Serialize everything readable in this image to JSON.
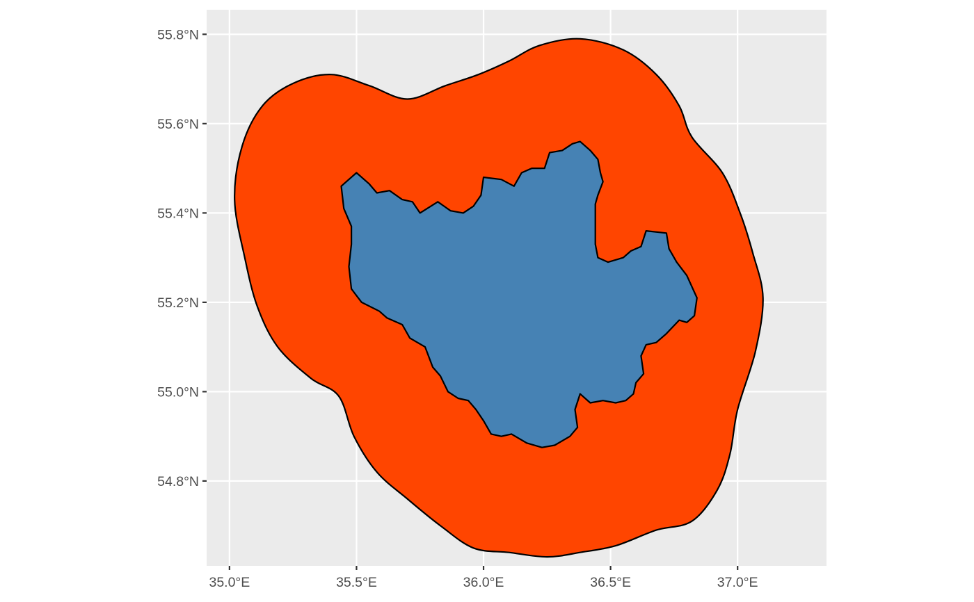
{
  "chart_data": {
    "type": "map",
    "title": "",
    "xlabel": "",
    "ylabel": "",
    "panel_background": "#ebebeb",
    "grid": true,
    "legend": "none",
    "x_axis": {
      "range_deg": [
        34.91,
        37.35
      ],
      "breaks": [
        35.0,
        35.5,
        36.0,
        36.5,
        37.0
      ],
      "tick_labels": [
        "35.0°E",
        "35.5°E",
        "36.0°E",
        "36.5°E",
        "37.0°E"
      ]
    },
    "y_axis": {
      "range_deg": [
        54.61,
        55.855
      ],
      "breaks": [
        54.8,
        55.0,
        55.2,
        55.4,
        55.6,
        55.8
      ],
      "tick_labels": [
        "54.8°N",
        "55.0°N",
        "55.2°N",
        "55.4°N",
        "55.6°N",
        "55.8°N"
      ]
    },
    "layers": [
      {
        "name": "",
        "fill": "#ff4500",
        "outline": "#000000",
        "coordinates": [
          [
            36.38,
            55.79
          ],
          [
            36.55,
            55.765
          ],
          [
            36.68,
            55.71
          ],
          [
            36.77,
            55.64
          ],
          [
            36.82,
            55.57
          ],
          [
            36.94,
            55.49
          ],
          [
            37.01,
            55.4
          ],
          [
            37.06,
            55.31
          ],
          [
            37.1,
            55.21
          ],
          [
            37.07,
            55.09
          ],
          [
            37.0,
            54.96
          ],
          [
            36.97,
            54.86
          ],
          [
            36.92,
            54.78
          ],
          [
            36.82,
            54.71
          ],
          [
            36.68,
            54.69
          ],
          [
            36.52,
            54.655
          ],
          [
            36.38,
            54.64
          ],
          [
            36.25,
            54.63
          ],
          [
            36.1,
            54.64
          ],
          [
            35.96,
            54.65
          ],
          [
            35.83,
            54.7
          ],
          [
            35.7,
            54.76
          ],
          [
            35.58,
            54.82
          ],
          [
            35.49,
            54.9
          ],
          [
            35.43,
            54.99
          ],
          [
            35.32,
            55.03
          ],
          [
            35.19,
            55.1
          ],
          [
            35.11,
            55.19
          ],
          [
            35.06,
            55.3
          ],
          [
            35.02,
            55.43
          ],
          [
            35.05,
            55.55
          ],
          [
            35.13,
            55.64
          ],
          [
            35.25,
            55.69
          ],
          [
            35.4,
            55.71
          ],
          [
            35.55,
            55.685
          ],
          [
            35.7,
            55.655
          ],
          [
            35.85,
            55.685
          ],
          [
            35.98,
            55.71
          ],
          [
            36.1,
            55.74
          ],
          [
            36.22,
            55.775
          ]
        ]
      },
      {
        "name": "",
        "fill": "#4682b4",
        "outline": "#000000",
        "coordinates": [
          [
            35.5,
            55.49
          ],
          [
            35.55,
            55.465
          ],
          [
            35.58,
            55.445
          ],
          [
            35.63,
            55.45
          ],
          [
            35.68,
            55.43
          ],
          [
            35.72,
            55.425
          ],
          [
            35.75,
            55.4
          ],
          [
            35.82,
            55.425
          ],
          [
            35.87,
            55.405
          ],
          [
            35.92,
            55.4
          ],
          [
            35.96,
            55.415
          ],
          [
            35.99,
            55.44
          ],
          [
            36.0,
            55.48
          ],
          [
            36.07,
            55.475
          ],
          [
            36.12,
            55.46
          ],
          [
            36.15,
            55.49
          ],
          [
            36.19,
            55.5
          ],
          [
            36.24,
            55.5
          ],
          [
            36.26,
            55.535
          ],
          [
            36.31,
            55.54
          ],
          [
            36.35,
            55.555
          ],
          [
            36.38,
            55.56
          ],
          [
            36.42,
            55.54
          ],
          [
            36.45,
            55.52
          ],
          [
            36.46,
            55.49
          ],
          [
            36.47,
            55.47
          ],
          [
            36.45,
            55.44
          ],
          [
            36.44,
            55.42
          ],
          [
            36.44,
            55.37
          ],
          [
            36.44,
            55.33
          ],
          [
            36.45,
            55.3
          ],
          [
            36.49,
            55.29
          ],
          [
            36.55,
            55.3
          ],
          [
            36.58,
            55.315
          ],
          [
            36.62,
            55.325
          ],
          [
            36.64,
            55.36
          ],
          [
            36.72,
            55.355
          ],
          [
            36.73,
            55.32
          ],
          [
            36.76,
            55.29
          ],
          [
            36.8,
            55.26
          ],
          [
            36.84,
            55.21
          ],
          [
            36.83,
            55.17
          ],
          [
            36.8,
            55.155
          ],
          [
            36.77,
            55.16
          ],
          [
            36.72,
            55.13
          ],
          [
            36.68,
            55.11
          ],
          [
            36.64,
            55.105
          ],
          [
            36.62,
            55.08
          ],
          [
            36.63,
            55.04
          ],
          [
            36.6,
            55.02
          ],
          [
            36.59,
            54.995
          ],
          [
            36.56,
            54.98
          ],
          [
            36.52,
            54.975
          ],
          [
            36.47,
            54.98
          ],
          [
            36.42,
            54.975
          ],
          [
            36.38,
            54.995
          ],
          [
            36.36,
            54.96
          ],
          [
            36.37,
            54.92
          ],
          [
            36.34,
            54.9
          ],
          [
            36.28,
            54.88
          ],
          [
            36.23,
            54.875
          ],
          [
            36.17,
            54.885
          ],
          [
            36.11,
            54.905
          ],
          [
            36.07,
            54.9
          ],
          [
            36.03,
            54.905
          ],
          [
            36.0,
            54.935
          ],
          [
            35.97,
            54.96
          ],
          [
            35.94,
            54.98
          ],
          [
            35.9,
            54.985
          ],
          [
            35.86,
            55.0
          ],
          [
            35.83,
            55.035
          ],
          [
            35.8,
            55.055
          ],
          [
            35.78,
            55.085
          ],
          [
            35.77,
            55.1
          ],
          [
            35.71,
            55.12
          ],
          [
            35.68,
            55.15
          ],
          [
            35.62,
            55.165
          ],
          [
            35.59,
            55.18
          ],
          [
            35.52,
            55.2
          ],
          [
            35.48,
            55.23
          ],
          [
            35.47,
            55.28
          ],
          [
            35.48,
            55.33
          ],
          [
            35.48,
            55.37
          ],
          [
            35.45,
            55.41
          ],
          [
            35.44,
            55.46
          ]
        ]
      }
    ]
  }
}
